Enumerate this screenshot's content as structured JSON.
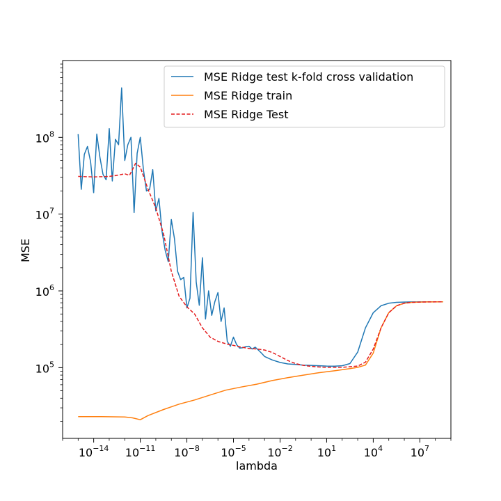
{
  "chart_data": {
    "type": "line",
    "title": "",
    "xlabel": "lambda",
    "ylabel": "MSE",
    "xscale": "log",
    "yscale": "log",
    "xlim": [
      1e-16,
      1000000000.0
    ],
    "ylim": [
      12000.0,
      1000000000.0
    ],
    "grid": false,
    "legend_position": "upper right",
    "x_ticks": [
      {
        "value": 1e-14,
        "label": "10",
        "exp": "−14"
      },
      {
        "value": 1e-11,
        "label": "10",
        "exp": "−11"
      },
      {
        "value": 1e-08,
        "label": "10",
        "exp": "−8"
      },
      {
        "value": 1e-05,
        "label": "10",
        "exp": "−5"
      },
      {
        "value": 0.01,
        "label": "10",
        "exp": "−2"
      },
      {
        "value": 10,
        "label": "10",
        "exp": "1"
      },
      {
        "value": 10000.0,
        "label": "10",
        "exp": "4"
      },
      {
        "value": 10000000.0,
        "label": "10",
        "exp": "7"
      }
    ],
    "y_ticks": [
      {
        "value": 100000.0,
        "label": "10",
        "exp": "5"
      },
      {
        "value": 1000000.0,
        "label": "10",
        "exp": "6"
      },
      {
        "value": 10000000.0,
        "label": "10",
        "exp": "7"
      },
      {
        "value": 100000000.0,
        "label": "10",
        "exp": "8"
      }
    ],
    "series": [
      {
        "name": "MSE Ridge test k-fold cross validation",
        "color": "#1f77b4",
        "style": "solid",
        "log10_lambda": [
          -15.0,
          -14.8,
          -14.6,
          -14.4,
          -14.2,
          -14.0,
          -13.8,
          -13.6,
          -13.4,
          -13.2,
          -13.0,
          -12.8,
          -12.6,
          -12.4,
          -12.2,
          -12.0,
          -11.8,
          -11.6,
          -11.4,
          -11.2,
          -11.0,
          -10.8,
          -10.6,
          -10.4,
          -10.2,
          -10.0,
          -9.8,
          -9.6,
          -9.4,
          -9.2,
          -9.0,
          -8.8,
          -8.6,
          -8.4,
          -8.2,
          -8.0,
          -7.8,
          -7.6,
          -7.4,
          -7.2,
          -7.0,
          -6.8,
          -6.6,
          -6.4,
          -6.2,
          -6.0,
          -5.8,
          -5.6,
          -5.4,
          -5.2,
          -5.0,
          -4.8,
          -4.6,
          -4.4,
          -4.2,
          -4.0,
          -3.8,
          -3.6,
          -3.4,
          -3.2,
          -3.0,
          -2.5,
          -2.0,
          -1.5,
          -1.0,
          -0.5,
          0.0,
          0.5,
          1.0,
          1.5,
          2.0,
          2.5,
          3.0,
          3.5,
          4.0,
          4.5,
          5.0,
          5.5,
          6.0,
          6.5,
          7.0,
          7.5,
          8.0,
          8.5
        ],
        "values": [
          110000000,
          21000000,
          60000000,
          76000000,
          48000000,
          19000000,
          110000000,
          55000000,
          33000000,
          28000000,
          130000000,
          27000000,
          94000000,
          80000000,
          440000000,
          50000000,
          80000000,
          100000000,
          10500000,
          62000000,
          100000000,
          38000000,
          20000000,
          21000000,
          38000000,
          11000000,
          16000000,
          6000000,
          3400000,
          2400000,
          8500000,
          4800000,
          1800000,
          1400000,
          1500000,
          600000,
          800000,
          10500000,
          1300000,
          650000,
          2700000,
          430000,
          1000000,
          480000,
          720000,
          950000,
          400000,
          600000,
          220000,
          190000,
          250000,
          200000,
          180000,
          182000,
          188000,
          190000,
          175000,
          185000,
          170000,
          155000,
          140000,
          126000,
          117000,
          112000,
          110000,
          108000,
          107000,
          106000,
          105000,
          104500,
          106000,
          113000,
          160000,
          330000,
          520000,
          640000,
          690000,
          710000,
          715000,
          718000,
          719000,
          720000,
          720000,
          720000
        ]
      },
      {
        "name": "MSE Ridge train",
        "color": "#ff7f0e",
        "style": "solid",
        "log10_lambda": [
          -15.0,
          -13.5,
          -12.0,
          -11.5,
          -11.0,
          -10.5,
          -9.5,
          -8.5,
          -7.5,
          -6.5,
          -5.5,
          -4.5,
          -3.5,
          -2.5,
          -1.5,
          -0.5,
          0.5,
          1.5,
          2.5,
          3.0,
          3.5,
          4.0,
          4.5,
          5.0,
          5.5,
          6.0,
          6.5,
          7.0,
          7.5,
          8.0,
          8.5
        ],
        "values": [
          23000,
          23000,
          22800,
          22200,
          21000,
          23800,
          28500,
          33500,
          38000,
          44000,
          51000,
          56000,
          61000,
          68000,
          74000,
          80000,
          86000,
          91000,
          97000,
          101000,
          108000,
          155000,
          330000,
          520000,
          640000,
          690000,
          710000,
          715000,
          718000,
          719000,
          720000
        ]
      },
      {
        "name": "MSE Ridge Test",
        "color": "#e41a1c",
        "style": "dashed",
        "log10_lambda": [
          -15.0,
          -14.0,
          -13.0,
          -12.5,
          -12.0,
          -11.7,
          -11.5,
          -11.3,
          -11.0,
          -10.5,
          -10.0,
          -9.5,
          -9.0,
          -8.5,
          -8.0,
          -7.5,
          -7.0,
          -6.5,
          -6.0,
          -5.5,
          -5.0,
          -4.5,
          -4.0,
          -3.5,
          -3.0,
          -2.5,
          -2.0,
          -1.5,
          -1.0,
          -0.5,
          0.0,
          0.5,
          1.0,
          1.5,
          2.0,
          2.5,
          3.0,
          3.5,
          4.0,
          4.5,
          5.0,
          5.5,
          6.0,
          6.5,
          7.0,
          7.5,
          8.0,
          8.5
        ],
        "values": [
          31000000,
          30500000,
          31000000,
          32000000,
          33500000,
          32000000,
          38000000,
          46000000,
          41000000,
          21000000,
          12000000,
          5500000,
          1800000,
          850000,
          620000,
          500000,
          330000,
          250000,
          220000,
          205000,
          195000,
          185000,
          178000,
          175000,
          170000,
          158000,
          140000,
          124000,
          113000,
          107000,
          104000,
          102000,
          101000,
          101000,
          101000,
          103000,
          105000,
          118000,
          175000,
          330000,
          520000,
          640000,
          690000,
          710000,
          715000,
          718000,
          720000,
          720000
        ]
      }
    ]
  }
}
